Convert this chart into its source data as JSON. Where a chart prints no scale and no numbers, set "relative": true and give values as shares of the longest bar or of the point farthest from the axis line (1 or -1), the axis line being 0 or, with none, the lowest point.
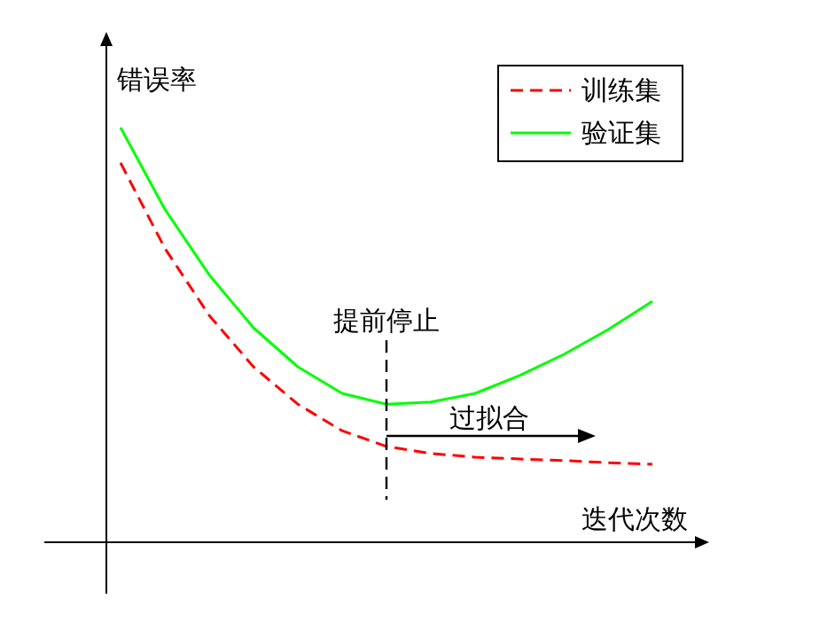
{
  "chart_data": {
    "type": "line",
    "relative": true,
    "xlabel": "迭代次数",
    "ylabel": "错误率",
    "legend": "top right",
    "categories": [
      null,
      null,
      null,
      null,
      null,
      null,
      null,
      null,
      null,
      null,
      null,
      null,
      null
    ],
    "series": [
      {
        "name": "训练集",
        "color": "#ff0000",
        "line_style": "dashed",
        "values": [
          0.915,
          0.709,
          0.547,
          0.423,
          0.333,
          0.269,
          0.231,
          0.214,
          0.205,
          0.201,
          0.197,
          0.192,
          0.188
        ]
      },
      {
        "name": "验证集",
        "color": "#00ff00",
        "line_style": "solid",
        "values": [
          1,
          0.803,
          0.645,
          0.517,
          0.423,
          0.359,
          0.333,
          0.338,
          0.359,
          0.402,
          0.453,
          0.513,
          0.581
        ]
      }
    ],
    "annotations": [
      "提前停止",
      "过拟合"
    ]
  }
}
